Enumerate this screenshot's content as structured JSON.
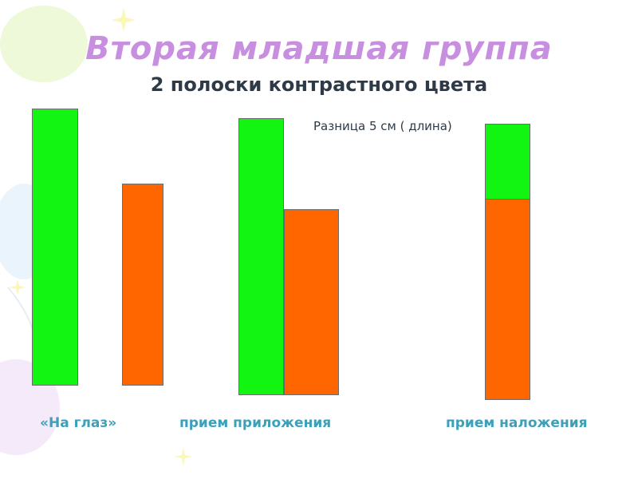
{
  "slide": {
    "title": "Вторая младшая группа",
    "subtitle": "2 полоски контрастного цвета",
    "note": "Разница 5 см ( длина)"
  },
  "colors": {
    "title": "#c88ee0",
    "green_strip": "#12f512",
    "orange_strip": "#ff6600",
    "caption": "#3da0b8",
    "text": "#2e3a48"
  },
  "methods": [
    {
      "caption": "«На глаз»"
    },
    {
      "caption": "прием приложения"
    },
    {
      "caption": "прием наложения"
    }
  ]
}
